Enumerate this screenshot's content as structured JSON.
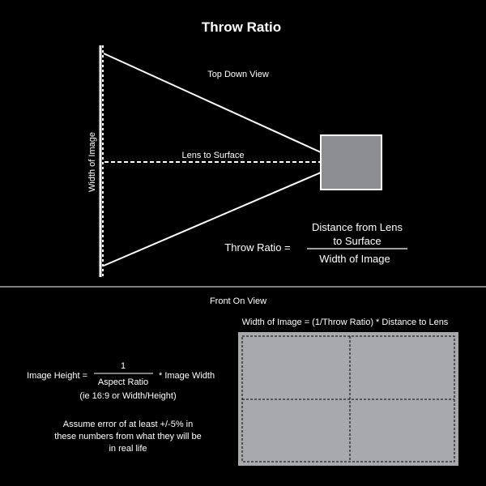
{
  "title": "Throw Ratio",
  "top_down": {
    "caption": "Top Down View",
    "width_label": "Width of Image",
    "lens_label": "Lens to Surface"
  },
  "formula": {
    "lhs": "Throw Ratio =",
    "numerator_line1": "Distance from Lens",
    "numerator_line2": "to Surface",
    "denominator": "Width of Image"
  },
  "front_on": {
    "caption": "Front On View",
    "width_formula": "Width of Image = (1/Throw Ratio) * Distance to Lens"
  },
  "height_formula": {
    "lhs": "Image Height =",
    "numerator": "1",
    "denominator": "Aspect Ratio",
    "rhs": "* Image Width",
    "note": "(ie 16:9 or Width/Height)"
  },
  "disclaimer": {
    "line1": "Assume error of at least +/-5% in",
    "line2": "these numbers from what they will be",
    "line3": "in real life"
  },
  "colors": {
    "background": "#000000",
    "foreground": "#ffffff",
    "projector_fill": "#8c8d91",
    "screen_fill": "#a8a9ac"
  }
}
